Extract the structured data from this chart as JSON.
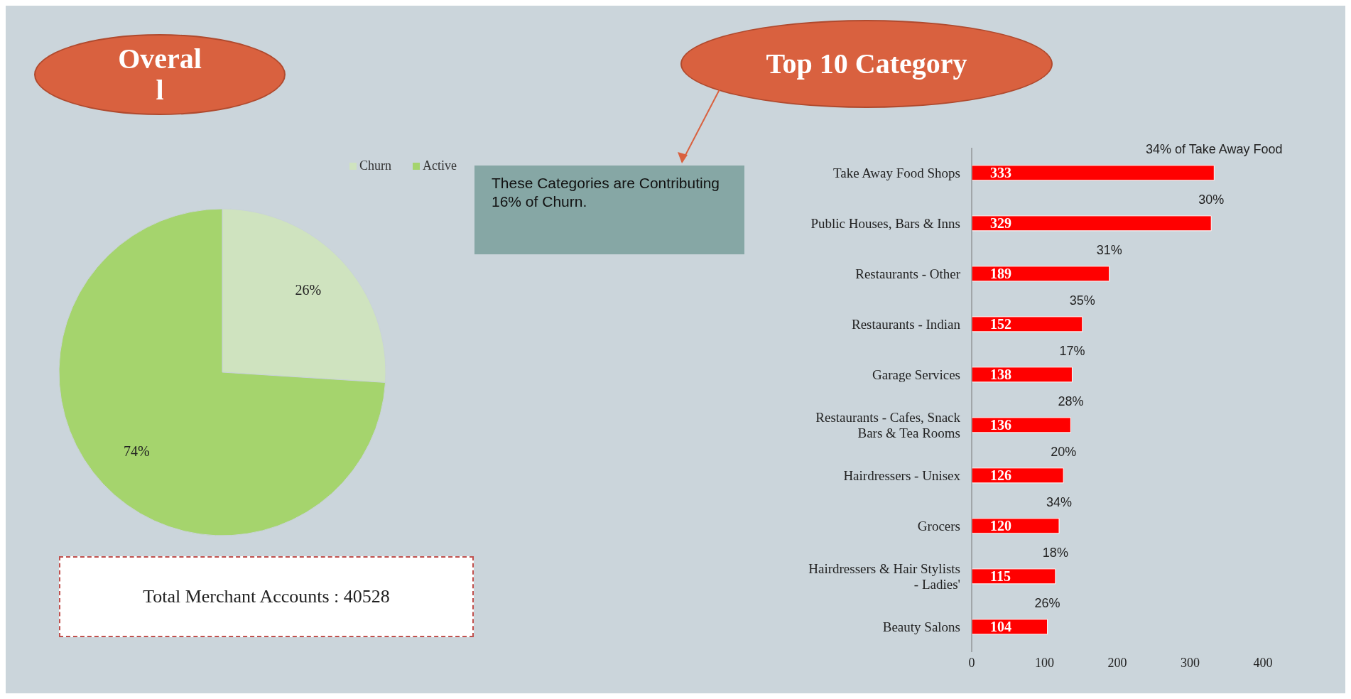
{
  "chart_data": [
    {
      "type": "pie",
      "title": "Overal\nl",
      "categories": [
        "Churn",
        "Active"
      ],
      "values": [
        26,
        74
      ],
      "colors": [
        "#cfe3bf",
        "#a5d46d"
      ],
      "value_labels": [
        "26%",
        "74%"
      ],
      "legend": "top right",
      "annotations": [
        "Total Merchant Accounts : 40528"
      ]
    },
    {
      "type": "bar",
      "orientation": "horizontal",
      "title": "Top 10 Category",
      "categories": [
        "Take Away Food Shops",
        "Public Houses, Bars & Inns",
        "Restaurants - Other",
        "Restaurants - Indian",
        "Garage Services",
        "Restaurants - Cafes, Snack Bars & Tea Rooms",
        "Hairdressers - Unisex",
        "Grocers",
        "Hairdressers & Hair Stylists - Ladies'",
        "Beauty Salons"
      ],
      "values": [
        333,
        329,
        189,
        152,
        138,
        136,
        126,
        120,
        115,
        104
      ],
      "color": "#ff0000",
      "data_labels": true,
      "xlim": [
        0,
        400
      ],
      "xticks": [
        0,
        100,
        200,
        300,
        400
      ],
      "grid": false,
      "annotations": [
        {
          "text": "34% of  Take Away Food",
          "x": 333,
          "y": "Take Away Food Shops"
        },
        {
          "text": "30%",
          "x": 329,
          "y": "Public Houses, Bars & Inns"
        },
        {
          "text": "31%",
          "x": 189,
          "y": "Restaurants - Other"
        },
        {
          "text": "35%",
          "x": 152,
          "y": "Restaurants - Indian"
        },
        {
          "text": "17%",
          "x": 138,
          "y": "Garage Services"
        },
        {
          "text": "28%",
          "x": 136,
          "y": "Restaurants - Cafes, Snack Bars & Tea Rooms"
        },
        {
          "text": "20%",
          "x": 126,
          "y": "Hairdressers - Unisex"
        },
        {
          "text": "34%",
          "x": 120,
          "y": "Grocers"
        },
        {
          "text": "18%",
          "x": 115,
          "y": "Hairdressers & Hair Stylists - Ladies'"
        },
        {
          "text": "26%",
          "x": 104,
          "y": "Beauty Salons"
        },
        "These Categories are Contributing 16% of Churn."
      ]
    }
  ]
}
